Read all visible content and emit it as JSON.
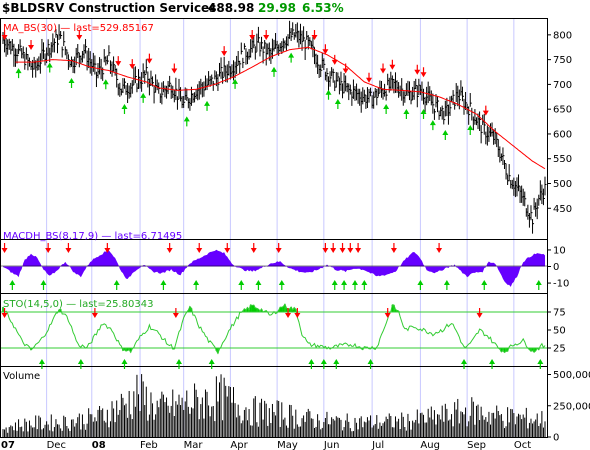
{
  "header": {
    "ticker": "$BLDSRV Construction Services",
    "last": "488.98",
    "change": "29.98",
    "change_pct": "6.53%"
  },
  "colors": {
    "price_bar": "#000000",
    "ma_line": "#ff0000",
    "macd_fill": "#6600ff",
    "sto_line": "#33cc33",
    "sto_fill": "#00cc00",
    "sell_arrow": "#ff0000",
    "buy_arrow": "#00cc00",
    "grid": "#c8c8ff",
    "change_up": "#009900"
  },
  "chart_data": [
    {
      "type": "bar",
      "panel": "price",
      "legend": "MA_BS(30) — last=529.85167",
      "ma_label": "MA_BS(30)",
      "ma_last": "last=529.85167",
      "y_ticks": [
        "800",
        "750",
        "700",
        "650",
        "600",
        "550",
        "500",
        "450"
      ],
      "y_tick_values": [
        800,
        750,
        700,
        650,
        600,
        550,
        500,
        450
      ],
      "ylim": [
        388,
        832
      ],
      "price_keys": [
        [
          0,
          790
        ],
        [
          12,
          760
        ],
        [
          20,
          730
        ],
        [
          28,
          770
        ],
        [
          36,
          795
        ],
        [
          44,
          745
        ],
        [
          52,
          770
        ],
        [
          60,
          720
        ],
        [
          68,
          750
        ],
        [
          76,
          690
        ],
        [
          84,
          700
        ],
        [
          92,
          720
        ],
        [
          100,
          680
        ],
        [
          108,
          700
        ],
        [
          116,
          660
        ],
        [
          124,
          690
        ],
        [
          132,
          700
        ],
        [
          140,
          720
        ],
        [
          148,
          740
        ],
        [
          156,
          765
        ],
        [
          164,
          780
        ],
        [
          172,
          760
        ],
        [
          180,
          790
        ],
        [
          188,
          800
        ],
        [
          196,
          780
        ],
        [
          204,
          740
        ],
        [
          212,
          710
        ],
        [
          220,
          690
        ],
        [
          228,
          680
        ],
        [
          236,
          670
        ],
        [
          244,
          690
        ],
        [
          252,
          700
        ],
        [
          260,
          680
        ],
        [
          268,
          690
        ],
        [
          276,
          660
        ],
        [
          284,
          640
        ],
        [
          292,
          680
        ],
        [
          300,
          650
        ],
        [
          308,
          610
        ],
        [
          316,
          590
        ],
        [
          324,
          520
        ],
        [
          332,
          480
        ],
        [
          340,
          430
        ],
        [
          344,
          470
        ],
        [
          348,
          489
        ]
      ],
      "ma_keys": [
        [
          8,
          745
        ],
        [
          20,
          745
        ],
        [
          32,
          750
        ],
        [
          44,
          748
        ],
        [
          56,
          735
        ],
        [
          68,
          728
        ],
        [
          80,
          715
        ],
        [
          92,
          705
        ],
        [
          100,
          693
        ],
        [
          112,
          688
        ],
        [
          124,
          690
        ],
        [
          136,
          700
        ],
        [
          148,
          715
        ],
        [
          160,
          735
        ],
        [
          172,
          756
        ],
        [
          184,
          770
        ],
        [
          196,
          775
        ],
        [
          208,
          760
        ],
        [
          220,
          738
        ],
        [
          232,
          705
        ],
        [
          244,
          690
        ],
        [
          256,
          688
        ],
        [
          268,
          685
        ],
        [
          280,
          675
        ],
        [
          292,
          660
        ],
        [
          304,
          640
        ],
        [
          316,
          605
        ],
        [
          328,
          575
        ],
        [
          340,
          545
        ],
        [
          348,
          529.85
        ]
      ],
      "sell_arrows": [
        1,
        18,
        49,
        74,
        83,
        94,
        110,
        142,
        160,
        169,
        200,
        207,
        213,
        220,
        235,
        244,
        250,
        266,
        270,
        310
      ],
      "buy_arrows": [
        10,
        30,
        44,
        66,
        78,
        90,
        118,
        131,
        149,
        174,
        185,
        209,
        215,
        246,
        259,
        270,
        276,
        284,
        300
      ]
    },
    {
      "type": "area",
      "panel": "macd",
      "legend": "MACDH_BS(8,17,9) — last=6.71495",
      "series_label": "MACDH_BS(8,17,9)",
      "last": "last=6.71495",
      "y_ticks": [
        "10",
        "0",
        "-10"
      ],
      "y_tick_values": [
        10,
        0,
        -10
      ],
      "ylim": [
        -16,
        16
      ],
      "keys": [
        [
          0,
          0
        ],
        [
          6,
          -4
        ],
        [
          10,
          -6
        ],
        [
          14,
          4
        ],
        [
          18,
          8
        ],
        [
          22,
          5
        ],
        [
          26,
          -2
        ],
        [
          30,
          -6
        ],
        [
          34,
          -3
        ],
        [
          40,
          3
        ],
        [
          46,
          -4
        ],
        [
          50,
          -6
        ],
        [
          56,
          3
        ],
        [
          62,
          7
        ],
        [
          68,
          10
        ],
        [
          72,
          5
        ],
        [
          76,
          -3
        ],
        [
          80,
          -8
        ],
        [
          84,
          -3
        ],
        [
          90,
          1
        ],
        [
          96,
          -3
        ],
        [
          102,
          -4
        ],
        [
          108,
          -2
        ],
        [
          114,
          -5
        ],
        [
          120,
          2
        ],
        [
          128,
          6
        ],
        [
          136,
          10
        ],
        [
          142,
          8
        ],
        [
          148,
          1
        ],
        [
          154,
          -2
        ],
        [
          160,
          -3
        ],
        [
          166,
          -1
        ],
        [
          172,
          2
        ],
        [
          178,
          3
        ],
        [
          184,
          -1
        ],
        [
          190,
          -3
        ],
        [
          196,
          -4
        ],
        [
          202,
          -2
        ],
        [
          208,
          1
        ],
        [
          214,
          -2
        ],
        [
          220,
          -3
        ],
        [
          226,
          -1
        ],
        [
          232,
          -2
        ],
        [
          240,
          -6
        ],
        [
          246,
          -5
        ],
        [
          252,
          -3
        ],
        [
          258,
          4
        ],
        [
          264,
          9
        ],
        [
          268,
          5
        ],
        [
          272,
          -2
        ],
        [
          278,
          -4
        ],
        [
          284,
          -1
        ],
        [
          290,
          1
        ],
        [
          294,
          -3
        ],
        [
          298,
          -6
        ],
        [
          302,
          -4
        ],
        [
          308,
          -3
        ],
        [
          312,
          3
        ],
        [
          316,
          2
        ],
        [
          322,
          -9
        ],
        [
          326,
          -12
        ],
        [
          330,
          -6
        ],
        [
          334,
          3
        ],
        [
          340,
          7
        ],
        [
          344,
          8
        ],
        [
          348,
          6.71
        ]
      ],
      "sell_arrows": [
        1,
        29,
        42,
        67,
        107,
        126,
        144,
        161,
        177,
        207,
        212,
        218,
        223,
        228,
        251,
        280
      ],
      "buy_arrows": [
        6,
        26,
        73,
        103,
        124,
        153,
        164,
        179,
        213,
        219,
        226,
        232,
        268,
        285,
        309,
        344
      ]
    },
    {
      "type": "line",
      "panel": "sto",
      "legend": "STO(14,5,0) — last=25.80343",
      "series_label": "STO(14,5,0)",
      "last": "last=25.80343",
      "y_ticks": [
        "75",
        "50",
        "25"
      ],
      "y_tick_values": [
        75,
        50,
        25
      ],
      "ylim": [
        0,
        100
      ],
      "overbought": 75,
      "oversold": 25,
      "keys": [
        [
          0,
          80
        ],
        [
          6,
          60
        ],
        [
          12,
          35
        ],
        [
          18,
          22
        ],
        [
          24,
          35
        ],
        [
          30,
          55
        ],
        [
          36,
          80
        ],
        [
          42,
          65
        ],
        [
          48,
          30
        ],
        [
          54,
          25
        ],
        [
          60,
          45
        ],
        [
          64,
          60
        ],
        [
          70,
          50
        ],
        [
          76,
          25
        ],
        [
          82,
          20
        ],
        [
          88,
          40
        ],
        [
          94,
          55
        ],
        [
          100,
          45
        ],
        [
          106,
          30
        ],
        [
          110,
          25
        ],
        [
          116,
          65
        ],
        [
          120,
          82
        ],
        [
          126,
          55
        ],
        [
          132,
          35
        ],
        [
          138,
          20
        ],
        [
          144,
          45
        ],
        [
          152,
          72
        ],
        [
          160,
          84
        ],
        [
          166,
          78
        ],
        [
          172,
          70
        ],
        [
          180,
          84
        ],
        [
          188,
          78
        ],
        [
          192,
          45
        ],
        [
          196,
          30
        ],
        [
          202,
          28
        ],
        [
          210,
          25
        ],
        [
          216,
          28
        ],
        [
          224,
          30
        ],
        [
          232,
          25
        ],
        [
          240,
          26
        ],
        [
          246,
          60
        ],
        [
          250,
          84
        ],
        [
          254,
          75
        ],
        [
          258,
          50
        ],
        [
          264,
          55
        ],
        [
          270,
          50
        ],
        [
          276,
          45
        ],
        [
          282,
          50
        ],
        [
          288,
          60
        ],
        [
          292,
          45
        ],
        [
          296,
          25
        ],
        [
          300,
          30
        ],
        [
          306,
          50
        ],
        [
          312,
          40
        ],
        [
          318,
          25
        ],
        [
          322,
          20
        ],
        [
          328,
          30
        ],
        [
          334,
          35
        ],
        [
          340,
          20
        ],
        [
          346,
          28
        ],
        [
          348,
          25.8
        ]
      ],
      "sell_arrows": [
        1,
        59,
        111,
        183,
        189,
        247,
        306
      ],
      "buy_arrows": [
        25,
        50,
        78,
        113,
        134,
        198,
        206,
        214,
        236,
        296,
        314,
        345
      ]
    },
    {
      "type": "bar",
      "panel": "volume",
      "label": "Volume",
      "y_ticks": [
        "500,000",
        "250,000",
        "0"
      ],
      "y_tick_values": [
        500000,
        250000,
        0
      ],
      "ylim": [
        0,
        560000
      ],
      "keys": [
        [
          0,
          90000
        ],
        [
          20,
          120000
        ],
        [
          40,
          130000
        ],
        [
          60,
          170000
        ],
        [
          80,
          300000
        ],
        [
          86,
          380000
        ],
        [
          100,
          250000
        ],
        [
          120,
          300000
        ],
        [
          140,
          350000
        ],
        [
          160,
          230000
        ],
        [
          180,
          200000
        ],
        [
          200,
          150000
        ],
        [
          220,
          130000
        ],
        [
          240,
          130000
        ],
        [
          260,
          140000
        ],
        [
          280,
          180000
        ],
        [
          300,
          230000
        ],
        [
          320,
          180000
        ],
        [
          340,
          160000
        ],
        [
          348,
          150000
        ]
      ]
    }
  ],
  "x_axis": {
    "labels": [
      "07",
      "Dec",
      "08",
      "Feb",
      "Mar",
      "Apr",
      "May",
      "Jun",
      "Jul",
      "Aug",
      "Sep",
      "Oct"
    ]
  }
}
